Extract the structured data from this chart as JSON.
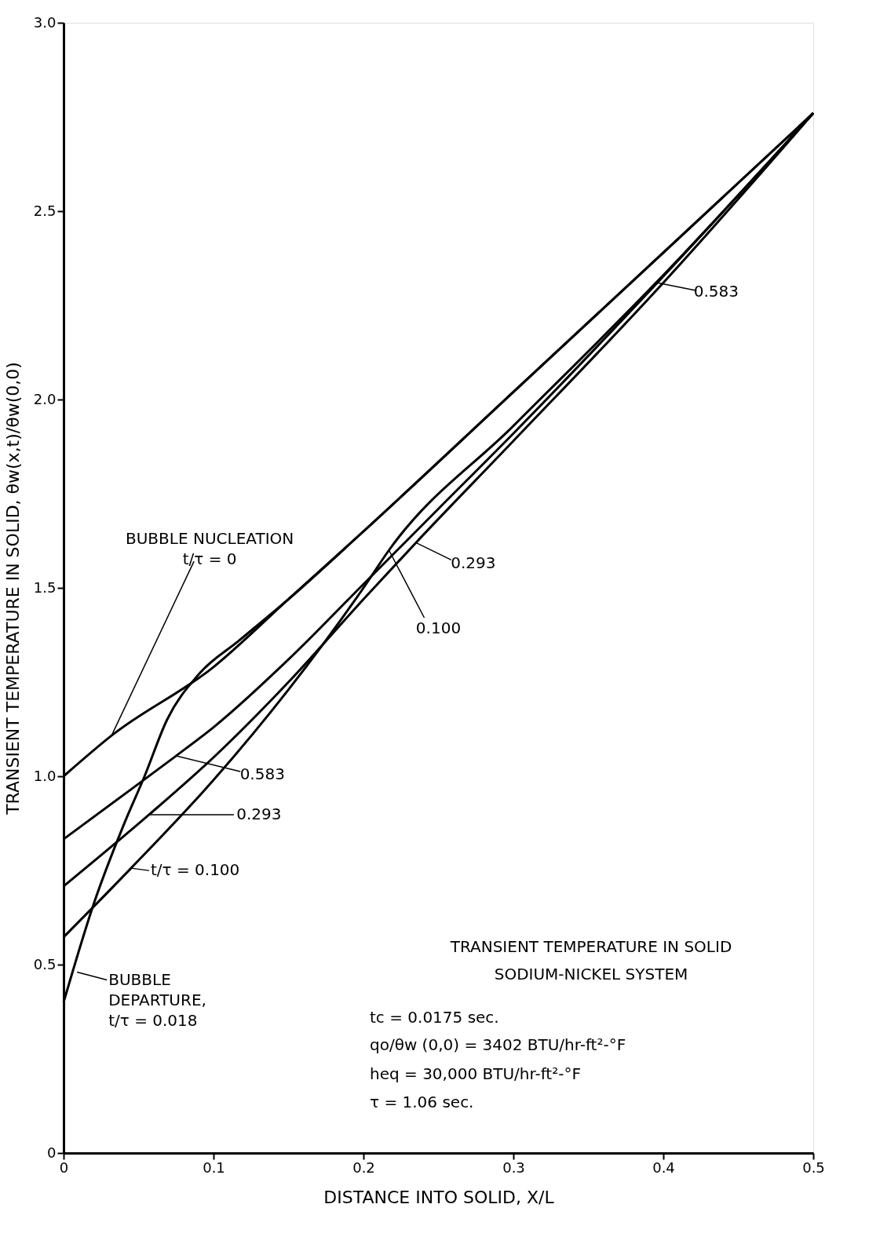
{
  "chart_data": {
    "type": "line",
    "xlabel": "DISTANCE INTO SOLID, X/L",
    "ylabel": "TRANSIENT TEMPERATURE IN SOLID, θw(x,t)/θw(0,0)",
    "xlim": [
      0,
      0.5
    ],
    "xticks": [
      0,
      0.1,
      0.2,
      0.3,
      0.4,
      0.5
    ],
    "ylim": [
      0,
      3.0
    ],
    "yticks": [
      0,
      0.5,
      {
        "value": 1,
        "label": "1.0"
      },
      1.5,
      {
        "value": 2,
        "label": "2.0"
      },
      2.5,
      {
        "value": 3,
        "label": "3.0"
      }
    ],
    "grid": false,
    "line_style": "solid",
    "marker": "none",
    "series": [
      {
        "color": "#000000",
        "x": [
          0,
          0.032,
          0.1,
          0.15,
          0.2,
          0.3,
          0.4,
          0.5
        ],
        "values": [
          1.0,
          1.108,
          1.29,
          1.47,
          1.65,
          2.02,
          2.39,
          2.76
        ]
      },
      {
        "color": "#000000",
        "x": [
          0,
          0.05,
          0.075,
          0.1,
          0.15,
          0.2,
          0.25,
          0.3,
          0.396,
          0.5
        ],
        "values": [
          0.833,
          0.98,
          1.054,
          1.13,
          1.31,
          1.51,
          1.71,
          1.91,
          2.31,
          2.76
        ]
      },
      {
        "color": "#000000",
        "x": [
          0,
          0.057,
          0.1,
          0.15,
          0.2,
          0.235,
          0.3,
          0.4,
          0.5
        ],
        "values": [
          0.708,
          0.898,
          1.05,
          1.25,
          1.47,
          1.62,
          1.89,
          2.31,
          2.76
        ]
      },
      {
        "color": "#000000",
        "x": [
          0,
          0.045,
          0.1,
          0.15,
          0.2,
          0.217,
          0.3,
          0.4,
          0.5
        ],
        "values": [
          0.573,
          0.756,
          0.99,
          1.23,
          1.5,
          1.6,
          1.93,
          2.33,
          2.76
        ]
      },
      {
        "color": "#000000",
        "x": [
          0,
          0.02,
          0.04,
          0.054,
          0.069,
          0.09,
          0.117,
          0.15,
          0.2,
          0.3,
          0.4,
          0.5
        ],
        "values": [
          0.4,
          0.66,
          0.87,
          1.0,
          1.15,
          1.27,
          1.36,
          1.47,
          1.65,
          2.02,
          2.39,
          2.76
        ]
      }
    ],
    "annotations": [
      {
        "text": "BUBBLE NUCLEATION\nt/τ = 0",
        "x": 0.032,
        "y": 1.108
      },
      {
        "text": "0.583",
        "x": 0.075,
        "y": 1.054
      },
      {
        "text": "0.293",
        "x": 0.057,
        "y": 0.898
      },
      {
        "text": "t/τ = 0.100",
        "x": 0.045,
        "y": 0.756
      },
      {
        "text": "BUBBLE\nDEPARTURE,\nt/τ = 0.018",
        "x": 0.009,
        "y": 0.48
      },
      {
        "text": "0.100",
        "x": 0.217,
        "y": 1.6
      },
      {
        "text": "0.293",
        "x": 0.235,
        "y": 1.62
      },
      {
        "text": "0.583",
        "x": 0.396,
        "y": 2.31
      },
      "TRANSIENT TEMPERATURE IN SOLID",
      "SODIUM-NICKEL SYSTEM",
      "tc = 0.0175 sec.",
      "qo/θw (0,0) = 3402 BTU/hr-ft²-°F",
      "heq = 30,000 BTU/hr-ft²-°F",
      "τ = 1.06 sec."
    ]
  }
}
